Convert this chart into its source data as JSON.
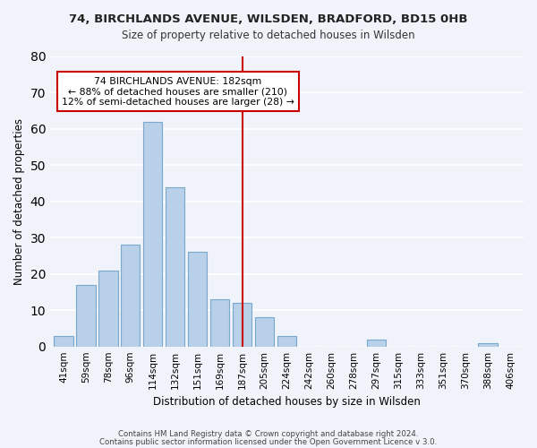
{
  "title1": "74, BIRCHLANDS AVENUE, WILSDEN, BRADFORD, BD15 0HB",
  "title2": "Size of property relative to detached houses in Wilsden",
  "xlabel": "Distribution of detached houses by size in Wilsden",
  "ylabel": "Number of detached properties",
  "categories": [
    "41sqm",
    "59sqm",
    "78sqm",
    "96sqm",
    "114sqm",
    "132sqm",
    "151sqm",
    "169sqm",
    "187sqm",
    "205sqm",
    "224sqm",
    "242sqm",
    "260sqm",
    "278sqm",
    "297sqm",
    "315sqm",
    "333sqm",
    "351sqm",
    "370sqm",
    "388sqm",
    "406sqm"
  ],
  "values": [
    3,
    17,
    21,
    28,
    62,
    44,
    26,
    13,
    12,
    8,
    3,
    0,
    0,
    0,
    2,
    0,
    0,
    0,
    0,
    1,
    0
  ],
  "bar_color": "#b8d0e8",
  "bar_edge_color": "#7aa8cc",
  "ylim": [
    0,
    80
  ],
  "yticks": [
    0,
    10,
    20,
    30,
    40,
    50,
    60,
    70,
    80
  ],
  "vline_x_index": 8,
  "vline_color": "#cc0000",
  "annotation_title": "74 BIRCHLANDS AVENUE: 182sqm",
  "annotation_line1": "← 88% of detached houses are smaller (210)",
  "annotation_line2": "12% of semi-detached houses are larger (28) →",
  "annotation_box_color": "#ffffff",
  "annotation_box_edge": "#cc0000",
  "footer1": "Contains HM Land Registry data © Crown copyright and database right 2024.",
  "footer2": "Contains public sector information licensed under the Open Government Licence v 3.0.",
  "background_color": "#f0f4fa",
  "grid_color": "#ffffff"
}
